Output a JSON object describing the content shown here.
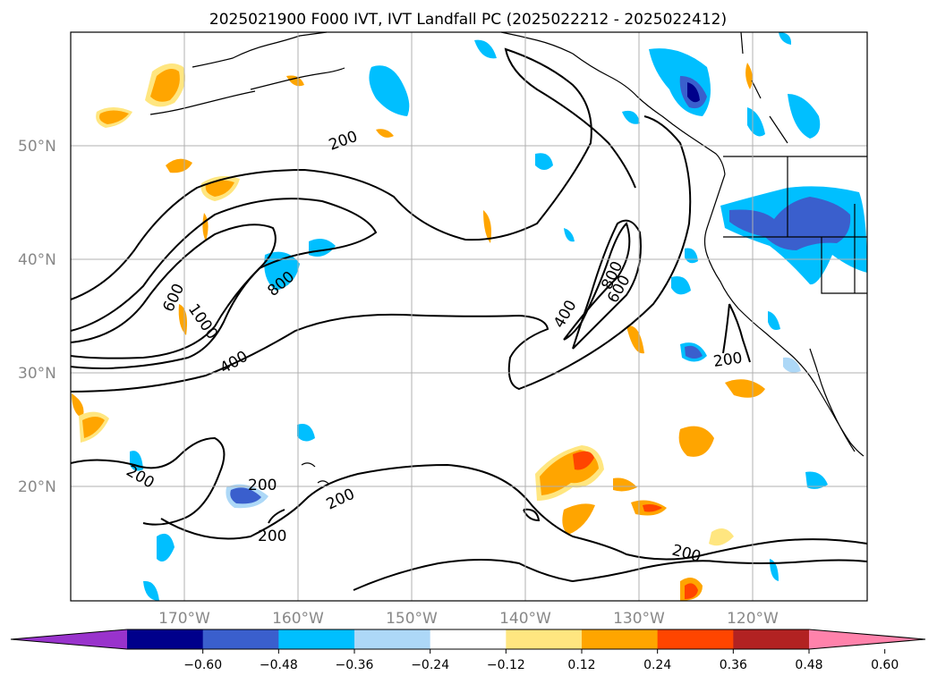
{
  "title": "2025021900 F000 IVT, IVT Landfall PC (2025022212 - 2025022412)",
  "map": {
    "lat_labels": [
      "50°N",
      "40°N",
      "30°N",
      "20°N"
    ],
    "lon_labels": [
      "170°W",
      "160°W",
      "150°W",
      "140°W",
      "130°W",
      "120°W"
    ],
    "gridlines": true,
    "contour_labels": [
      "200",
      "200",
      "200",
      "200",
      "200",
      "200",
      "200",
      "400",
      "400",
      "600",
      "600",
      "800",
      "800",
      "1000"
    ]
  },
  "colorbar": {
    "ticks": [
      "−0.60",
      "−0.48",
      "−0.36",
      "−0.24",
      "−0.12",
      "0.12",
      "0.24",
      "0.36",
      "0.48",
      "0.60"
    ],
    "colors": [
      "#9933cc",
      "#00008b",
      "#3a5fcd",
      "#00bfff",
      "#add8f7",
      "#ffffff",
      "#ffe680",
      "#ffa500",
      "#ff4500",
      "#b22222",
      "#ff82ab"
    ],
    "extend": "both"
  }
}
